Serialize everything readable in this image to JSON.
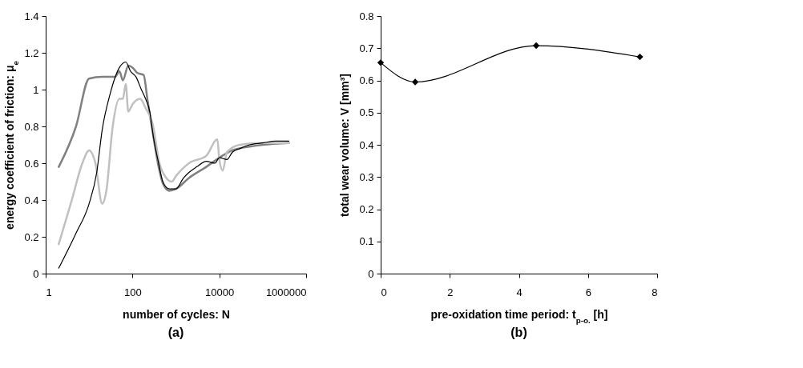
{
  "chart_data": [
    {
      "type": "line",
      "xlabel": "number of cycles: N",
      "ylabel": "energy coefficient of friction: μ$_{e}$",
      "annotations": [
        "(a)"
      ],
      "log": "x",
      "xlim": [
        1,
        1000000
      ],
      "xticks": [
        1,
        100,
        10000,
        1000000
      ],
      "ylim": [
        0,
        1.4
      ],
      "yticks": [
        0,
        0.2,
        0.4,
        0.6,
        0.8,
        1,
        1.2,
        1.4
      ],
      "grid": false,
      "series": [
        {
          "color": "#808080",
          "x": [
            2,
            5,
            10,
            20,
            40,
            50,
            60,
            80,
            100,
            130,
            180,
            220,
            300,
            400,
            500,
            700,
            1000,
            2000,
            5000,
            10000,
            20000,
            50000,
            100000,
            400000
          ],
          "values": [
            0.58,
            0.8,
            1.06,
            1.07,
            1.07,
            1.1,
            1.05,
            1.13,
            1.12,
            1.09,
            1.08,
            0.95,
            0.75,
            0.58,
            0.49,
            0.45,
            0.46,
            0.52,
            0.58,
            0.63,
            0.67,
            0.69,
            0.7,
            0.71
          ]
        },
        {
          "color": "#c0c0c0",
          "x": [
            2,
            4,
            7,
            10,
            14,
            20,
            25,
            35,
            50,
            60,
            70,
            80,
            100,
            150,
            200,
            300,
            400,
            600,
            800,
            1000,
            2000,
            5000,
            9000,
            10000,
            12000,
            15000,
            30000,
            100000,
            400000
          ],
          "values": [
            0.16,
            0.4,
            0.6,
            0.67,
            0.6,
            0.38,
            0.45,
            0.8,
            0.95,
            0.95,
            1.03,
            0.88,
            0.92,
            0.95,
            0.9,
            0.8,
            0.62,
            0.52,
            0.5,
            0.53,
            0.6,
            0.64,
            0.73,
            0.62,
            0.56,
            0.66,
            0.7,
            0.71,
            0.71
          ]
        },
        {
          "color": "#000000",
          "x": [
            2,
            5,
            10,
            15,
            20,
            30,
            50,
            70,
            90,
            120,
            160,
            200,
            250,
            300,
            400,
            500,
            700,
            1000,
            1500,
            2000,
            3000,
            5000,
            8000,
            10000,
            15000,
            20000,
            30000,
            50000,
            100000,
            200000,
            400000
          ],
          "values": [
            0.03,
            0.22,
            0.38,
            0.55,
            0.78,
            0.97,
            1.12,
            1.15,
            1.1,
            1.07,
            1.0,
            0.95,
            0.88,
            0.75,
            0.6,
            0.5,
            0.46,
            0.46,
            0.52,
            0.55,
            0.58,
            0.61,
            0.6,
            0.63,
            0.62,
            0.66,
            0.68,
            0.7,
            0.71,
            0.72,
            0.72
          ]
        }
      ]
    },
    {
      "type": "line",
      "xlabel": "pre-oxidation time period: t$_{p-o.}$ [h]",
      "ylabel": "total wear volume: V [mm³]",
      "annotations": [
        "(b)"
      ],
      "xlim": [
        0,
        8
      ],
      "xticks": [
        0,
        2,
        4,
        6,
        8
      ],
      "ylim": [
        0,
        0.8
      ],
      "yticks": [
        0,
        0.1,
        0.2,
        0.3,
        0.4,
        0.5,
        0.6,
        0.7,
        0.8
      ],
      "grid": false,
      "marker": "diamond",
      "series": [
        {
          "color": "#000000",
          "x": [
            0,
            1,
            4.5,
            7.5
          ],
          "values": [
            0.655,
            0.595,
            0.708,
            0.673
          ]
        }
      ]
    }
  ]
}
